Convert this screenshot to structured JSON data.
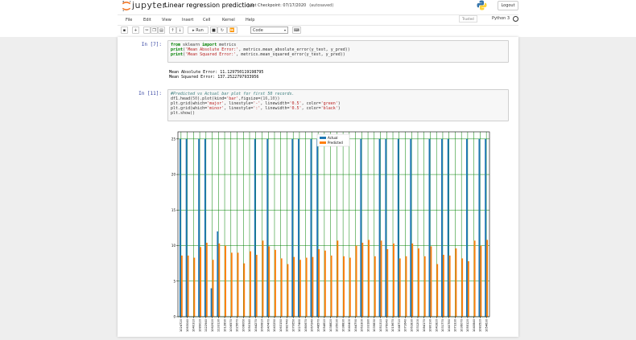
{
  "header": {
    "brand": "jupyter",
    "notebook_title": "Linear regression prediction",
    "checkpoint": "Last Checkpoint: 07/17/2020",
    "autosaved": "(autosaved)",
    "logout_label": "Logout"
  },
  "menu": [
    "File",
    "Edit",
    "View",
    "Insert",
    "Cell",
    "Kernel",
    "Help"
  ],
  "status": {
    "trusted": "Trusted",
    "kernel": "Python 3"
  },
  "toolbar": {
    "icons": [
      "save-icon",
      "add-cell-icon",
      "cut-icon",
      "copy-icon",
      "paste-icon",
      "move-up-icon",
      "move-down-icon"
    ],
    "run_label": "Run",
    "cell_type": "Code"
  },
  "cells": [
    {
      "prompt": "In [7]:",
      "code": [
        "from sklearn import metrics",
        "print('Mean Absolute Error:', metrics.mean_absolute_error(y_test, y_pred))",
        "print('Mean Squared Error:', metrics.mean_squared_error(y_test, y_pred))"
      ],
      "output": [
        "Mean Absolute Error: 11.129750119198795",
        "Mean Squared Error: 137.2522797933956"
      ]
    },
    {
      "prompt": "In [11]:",
      "code": [
        "#Predicted vs Actual bar plot for first 50 records.",
        "df1.head(50).plot(kind='bar',figsize=(16,10))",
        "plt.grid(which='major', linestyle='-', linewidth='0.5', color='green')",
        "plt.grid(which='minor', linestyle=':', linewidth='0.5', color='black')",
        "plt.show()"
      ]
    }
  ],
  "chart_data": {
    "type": "bar",
    "title": "",
    "xlabel": "",
    "ylabel": "",
    "ylim": [
      0,
      26
    ],
    "yticks": [
      0,
      5,
      10,
      15,
      20,
      25
    ],
    "grid": true,
    "legend_position": "top-center",
    "categories": [
      "1024720",
      "1063040",
      "1040310",
      "1089020",
      "1122940",
      "1062920",
      "1133130",
      "1012890",
      "1006570",
      "1025670",
      "1008060",
      "1050340",
      "1044270",
      "1060810",
      "1047470",
      "1043250",
      "1063150",
      "1082740",
      "1070650",
      "1027460",
      "1080670",
      "1067240",
      "1048570",
      "1054610",
      "1038820",
      "1035030",
      "1038830",
      "1040400",
      "1044790",
      "1063300",
      "1033180",
      "1039830",
      "1051310",
      "1076040",
      "1015670",
      "1048710",
      "1071640",
      "1061830",
      "1031200",
      "1084170",
      "1080190",
      "1041820",
      "1031770",
      "1040780",
      "1073330",
      "1036070",
      "1055120",
      "1040840",
      "1083520",
      "1054630"
    ],
    "series": [
      {
        "name": "Actual",
        "color": "#1f77b4",
        "values": [
          25,
          25,
          0,
          25,
          25,
          4,
          12,
          0,
          0,
          0,
          0,
          0,
          25,
          0,
          25,
          0,
          0,
          0,
          25,
          25,
          0,
          25,
          25,
          0,
          0,
          0,
          0,
          0,
          0,
          25,
          0,
          0,
          25,
          25,
          0,
          25,
          0,
          25,
          0,
          0,
          25,
          0,
          25,
          25,
          0,
          0,
          25,
          0,
          25,
          25
        ]
      },
      {
        "name": "Predicted",
        "color": "#ff7f0e",
        "values": [
          8.6,
          8.6,
          8.3,
          9.8,
          10.4,
          8.0,
          10.3,
          10.0,
          9.0,
          9.0,
          7.5,
          9.2,
          8.7,
          10.7,
          9.9,
          9.4,
          8.2,
          7.4,
          8.4,
          8.0,
          8.3,
          8.4,
          9.5,
          9.3,
          8.6,
          10.7,
          8.5,
          8.3,
          10.0,
          10.4,
          10.8,
          8.5,
          10.7,
          9.5,
          10.3,
          8.2,
          8.5,
          10.3,
          9.6,
          8.5,
          9.9,
          7.4,
          8.7,
          8.6,
          9.6,
          8.2,
          7.8,
          10.7,
          10.0,
          10.8
        ]
      }
    ]
  }
}
